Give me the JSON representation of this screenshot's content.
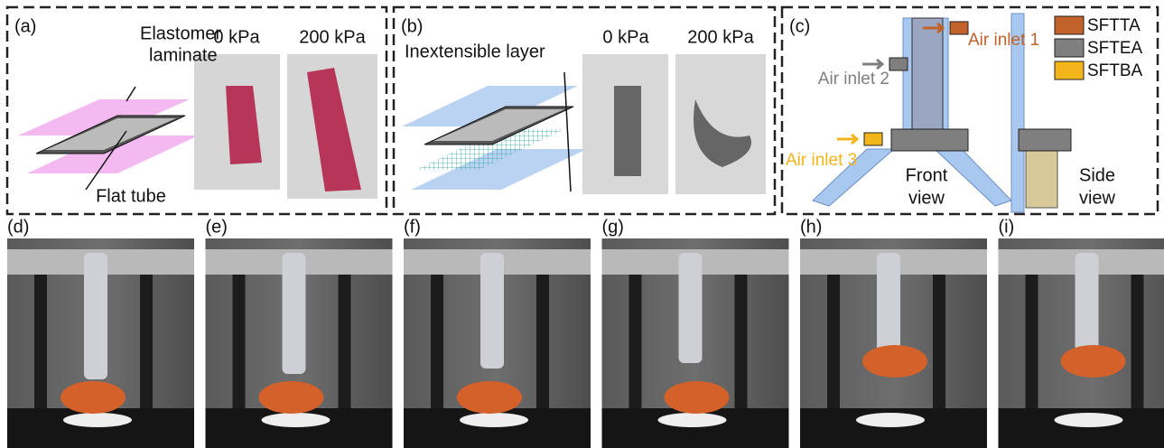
{
  "panel_a": {
    "label": "(a)",
    "elastomer_line1": "Elastomer",
    "elastomer_line2": "laminate",
    "flat_tube": "Flat tube",
    "pressure_low": "0 kPa",
    "pressure_high": "200 kPa"
  },
  "panel_b": {
    "label": "(b)",
    "inextensible": "Inextensible layer",
    "pressure_low": "0 kPa",
    "pressure_high": "200 kPa"
  },
  "panel_c": {
    "label": "(c)",
    "inlets": [
      "Air inlet 1",
      "Air inlet 2",
      "Air inlet 3"
    ],
    "front_line1": "Front",
    "front_line2": "view",
    "side_line1": "Side",
    "side_line2": "view",
    "legend": [
      {
        "name": "SFTTA",
        "color": "#c0622a"
      },
      {
        "name": "SFTEA",
        "color": "#7f7f7f"
      },
      {
        "name": "SFTBA",
        "color": "#f2b61c"
      }
    ]
  },
  "photos": [
    "(d)",
    "(e)",
    "(f)",
    "(g)",
    "(h)",
    "(i)"
  ]
}
